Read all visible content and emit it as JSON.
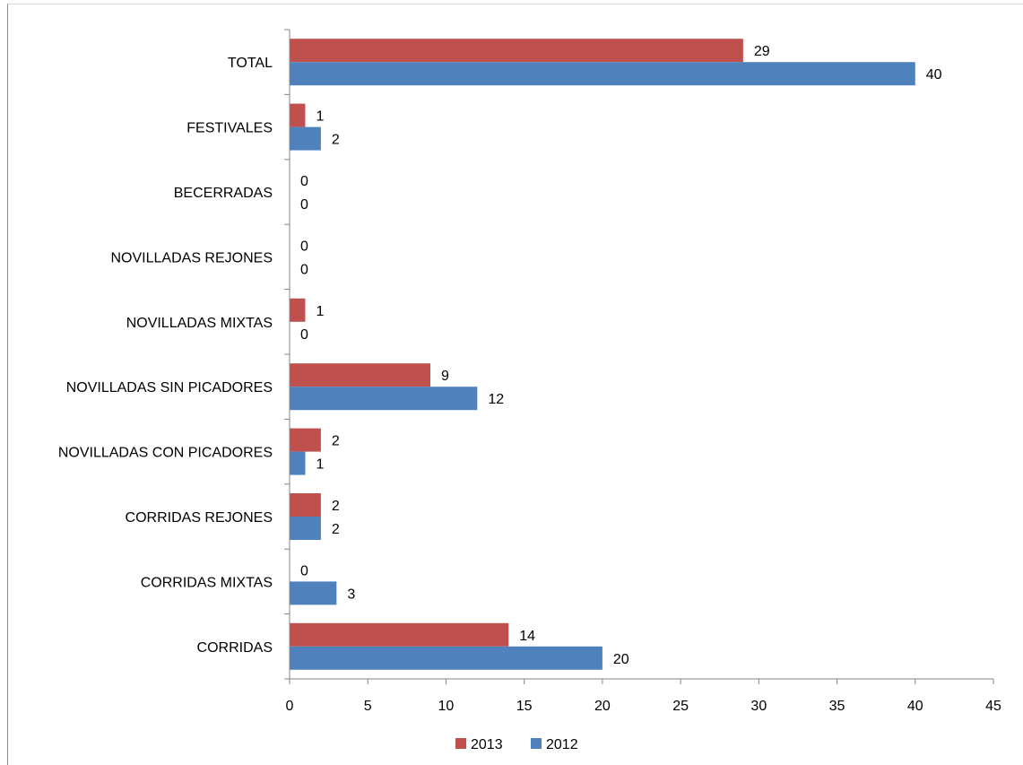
{
  "chart_data": {
    "type": "bar",
    "orientation": "horizontal",
    "categories": [
      "TOTAL",
      "FESTIVALES",
      "BECERRADAS",
      "NOVILLADAS REJONES",
      "NOVILLADAS MIXTAS",
      "NOVILLADAS SIN PICADORES",
      "NOVILLADAS CON PICADORES",
      "CORRIDAS REJONES",
      "CORRIDAS MIXTAS",
      "CORRIDAS"
    ],
    "series": [
      {
        "name": "2013",
        "color": "#c0504d",
        "values": [
          29,
          1,
          0,
          0,
          1,
          9,
          2,
          2,
          0,
          14
        ]
      },
      {
        "name": "2012",
        "color": "#4f81bd",
        "values": [
          40,
          2,
          0,
          0,
          0,
          12,
          1,
          2,
          3,
          20
        ]
      }
    ],
    "xlim": [
      0,
      45
    ],
    "xticks": [
      0,
      5,
      10,
      15,
      20,
      25,
      30,
      35,
      40,
      45
    ],
    "grid": false,
    "legend": "bottom",
    "data_labels": true,
    "title": "",
    "xlabel": "",
    "ylabel": ""
  }
}
